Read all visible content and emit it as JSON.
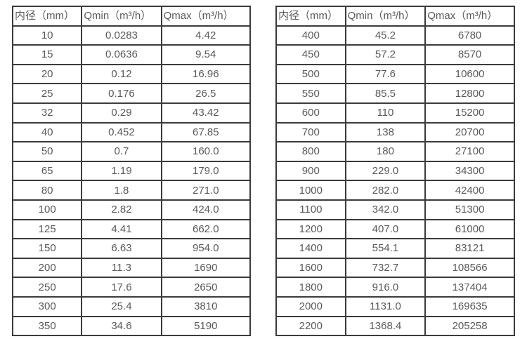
{
  "colors": {
    "background": "#ffffff",
    "text": "#595959",
    "border": "#3b3b3b"
  },
  "tables": [
    {
      "name": "flow-table-small-diameters",
      "headers": [
        "内径（mm）",
        "Qmin（m³/h）",
        "Qmax（m³/h）"
      ],
      "rows": [
        [
          "10",
          "0.0283",
          "4.42"
        ],
        [
          "15",
          "0.0636",
          "9.54"
        ],
        [
          "20",
          "0.12",
          "16.96"
        ],
        [
          "25",
          "0.176",
          "26.5"
        ],
        [
          "32",
          "0.29",
          "43.42"
        ],
        [
          "40",
          "0.452",
          "67.85"
        ],
        [
          "50",
          "0.7",
          "160.0"
        ],
        [
          "65",
          "1.19",
          "179.0"
        ],
        [
          "80",
          "1.8",
          "271.0"
        ],
        [
          "100",
          "2.82",
          "424.0"
        ],
        [
          "125",
          "4.41",
          "662.0"
        ],
        [
          "150",
          "6.63",
          "954.0"
        ],
        [
          "200",
          "11.3",
          "1690"
        ],
        [
          "250",
          "17.6",
          "2650"
        ],
        [
          "300",
          "25.4",
          "3810"
        ],
        [
          "350",
          "34.6",
          "5190"
        ]
      ]
    },
    {
      "name": "flow-table-large-diameters",
      "headers": [
        "内径（mm）",
        "Qmin（m³/h）",
        "Qmax（m³/h）"
      ],
      "rows": [
        [
          "400",
          "45.2",
          "6780"
        ],
        [
          "450",
          "57.2",
          "8570"
        ],
        [
          "500",
          "77.6",
          "10600"
        ],
        [
          "550",
          "85.5",
          "12800"
        ],
        [
          "600",
          "110",
          "15200"
        ],
        [
          "700",
          "138",
          "20700"
        ],
        [
          "800",
          "180",
          "27100"
        ],
        [
          "900",
          "229.0",
          "34300"
        ],
        [
          "1000",
          "282.0",
          "42400"
        ],
        [
          "1100",
          "342.0",
          "51300"
        ],
        [
          "1200",
          "407.0",
          "61000"
        ],
        [
          "1400",
          "554.1",
          "83121"
        ],
        [
          "1600",
          "732.7",
          "108566"
        ],
        [
          "1800",
          "916.0",
          "137404"
        ],
        [
          "2000",
          "1131.0",
          "169635"
        ],
        [
          "2200",
          "1368.4",
          "205258"
        ]
      ]
    }
  ]
}
